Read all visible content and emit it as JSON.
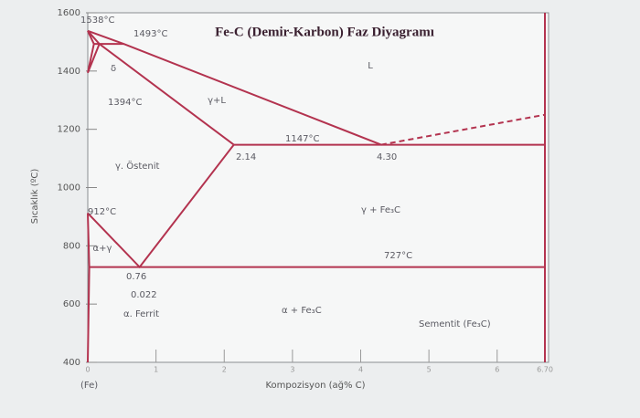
{
  "chart_data": {
    "type": "line",
    "title": "Fe-C (Demir-Karbon) Faz Diyagramı",
    "xlabel": "Kompozisyon (ağ% C)",
    "ylabel": "Sıcaklık (ºC)",
    "xlim": [
      0,
      6.7
    ],
    "ylim": [
      400,
      1600
    ],
    "xticks": [
      0,
      1,
      2,
      3,
      4,
      5,
      6,
      {
        "value": 6.7,
        "label": "6.70"
      }
    ],
    "yticks": [
      400,
      600,
      800,
      1000,
      1200,
      1400,
      1600
    ],
    "series": [
      {
        "color": "#b3334f",
        "x": [
          0,
          0.53,
          4.3
        ],
        "values": [
          1538,
          1493,
          1147
        ]
      },
      {
        "color": "#b3334f",
        "x": [
          4.3,
          6.7
        ],
        "values": [
          1147,
          1250
        ],
        "dashed": true
      },
      {
        "color": "#b3334f",
        "x": [
          0,
          0.17,
          2.14
        ],
        "values": [
          1538,
          1493,
          1147
        ]
      },
      {
        "color": "#b3334f",
        "x": [
          0.09,
          0.53
        ],
        "values": [
          1493,
          1493
        ]
      },
      {
        "color": "#b3334f",
        "x": [
          0,
          0.09,
          0,
          0.17
        ],
        "values": [
          1538,
          1493,
          1394,
          1493
        ]
      },
      {
        "color": "#b3334f",
        "x": [
          2.14,
          6.7
        ],
        "values": [
          1147,
          1147
        ]
      },
      {
        "color": "#b3334f",
        "x": [
          0,
          0.76,
          2.14
        ],
        "values": [
          912,
          727,
          1147
        ]
      },
      {
        "color": "#b3334f",
        "x": [
          0.022,
          6.7
        ],
        "values": [
          727,
          727
        ]
      },
      {
        "color": "#b3334f",
        "x": [
          0,
          0.022,
          0
        ],
        "values": [
          912,
          727,
          400
        ]
      },
      {
        "color": "#b3334f",
        "x": [
          6.7,
          6.7
        ],
        "values": [
          400,
          1600
        ]
      }
    ],
    "annotations": [
      "1538°C",
      "1493°C",
      "δ",
      "1394°C",
      "γ+L",
      "L",
      "1147°C",
      "2.14",
      "4.30",
      "γ. Östenit",
      "912°C",
      "γ + Fe₃C",
      "727°C",
      "α+γ",
      "0.76",
      "0.022",
      "α. Ferrit",
      "α + Fe₃C",
      "Sementit (Fe₃C)",
      "(Fe)"
    ],
    "grid": false
  }
}
